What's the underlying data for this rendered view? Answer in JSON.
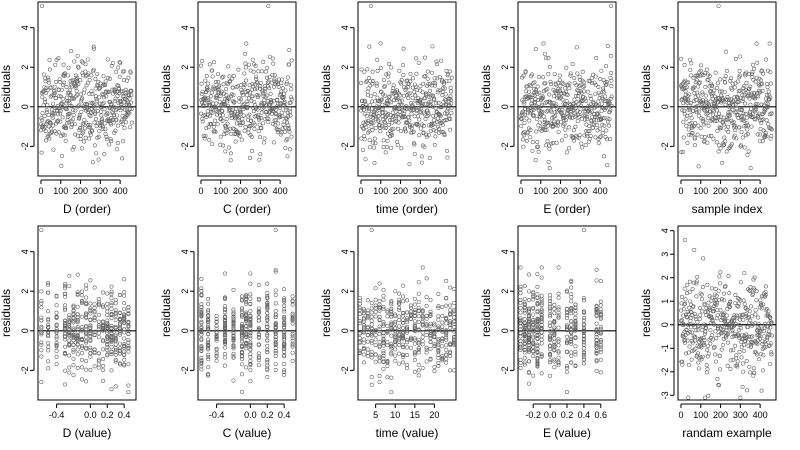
{
  "chart_data": [
    {
      "type": "scatter",
      "xlabel": "D (order)",
      "ylabel": "residuals",
      "xlim": [
        -15,
        480
      ],
      "ylim": [
        -3.5,
        5.3
      ],
      "xticks": [
        0,
        100,
        200,
        300,
        400
      ],
      "xtick_labels": [
        "0",
        "100",
        "200",
        "300",
        "400"
      ],
      "yticks": [
        -2,
        0,
        2,
        4
      ],
      "ytick_labels": [
        "-2",
        "0",
        "2",
        "4"
      ],
      "hline": 0,
      "n_points": 460,
      "x_kind": "index",
      "seed": 11,
      "outlier_x": 5,
      "outlier_y": 5.1
    },
    {
      "type": "scatter",
      "xlabel": "C (order)",
      "ylabel": "residuals",
      "xlim": [
        -15,
        480
      ],
      "ylim": [
        -3.5,
        5.3
      ],
      "xticks": [
        0,
        100,
        200,
        300,
        400
      ],
      "xtick_labels": [
        "0",
        "100",
        "200",
        "300",
        "400"
      ],
      "yticks": [
        -2,
        0,
        2,
        4
      ],
      "ytick_labels": [
        "-2",
        "0",
        "2",
        "4"
      ],
      "hline": 0,
      "n_points": 460,
      "x_kind": "index",
      "seed": 23,
      "outlier_x": 340,
      "outlier_y": 5.1
    },
    {
      "type": "scatter",
      "xlabel": "time (order)",
      "ylabel": "residuals",
      "xlim": [
        -15,
        480
      ],
      "ylim": [
        -3.5,
        5.3
      ],
      "xticks": [
        0,
        100,
        200,
        300,
        400
      ],
      "xtick_labels": [
        "0",
        "100",
        "200",
        "300",
        "400"
      ],
      "yticks": [
        -2,
        0,
        2,
        4
      ],
      "ytick_labels": [
        "-2",
        "0",
        "2",
        "4"
      ],
      "hline": 0,
      "n_points": 460,
      "x_kind": "index",
      "seed": 37,
      "outlier_x": 50,
      "outlier_y": 5.1
    },
    {
      "type": "scatter",
      "xlabel": "E (order)",
      "ylabel": "residuals",
      "xlim": [
        -15,
        480
      ],
      "ylim": [
        -3.5,
        5.3
      ],
      "xticks": [
        0,
        100,
        200,
        300,
        400
      ],
      "xtick_labels": [
        "0",
        "100",
        "200",
        "300",
        "400"
      ],
      "yticks": [
        -2,
        0,
        2,
        4
      ],
      "ytick_labels": [
        "-2",
        "0",
        "2",
        "4"
      ],
      "hline": 0,
      "n_points": 460,
      "x_kind": "index",
      "seed": 41,
      "outlier_x": 455,
      "outlier_y": 5.1
    },
    {
      "type": "scatter",
      "xlabel": "sample index",
      "ylabel": "residuals",
      "xlim": [
        -15,
        480
      ],
      "ylim": [
        -3.5,
        5.3
      ],
      "xticks": [
        0,
        100,
        200,
        300,
        400
      ],
      "xtick_labels": [
        "0",
        "100",
        "200",
        "300",
        "400"
      ],
      "yticks": [
        -2,
        0,
        2,
        4
      ],
      "ytick_labels": [
        "-2",
        "0",
        "2",
        "4"
      ],
      "hline": 0,
      "n_points": 460,
      "x_kind": "index",
      "seed": 53,
      "outlier_x": 190,
      "outlier_y": 5.1
    },
    {
      "type": "scatter",
      "xlabel": "D (value)",
      "ylabel": "residuals",
      "xlim": [
        -0.62,
        0.54
      ],
      "ylim": [
        -3.5,
        5.3
      ],
      "xticks": [
        -0.4,
        0,
        0.2,
        0.4
      ],
      "xtick_labels": [
        "-0.4",
        "0.0",
        "0.2",
        "0.4"
      ],
      "yticks": [
        -2,
        0,
        2,
        4
      ],
      "ytick_labels": [
        "-2",
        "0",
        "2",
        "4"
      ],
      "hline": 0,
      "n_points": 460,
      "x_kind": "discrete",
      "x_levels": [
        -0.58,
        -0.5,
        -0.4,
        -0.3,
        -0.25,
        -0.2,
        -0.15,
        -0.1,
        -0.05,
        0,
        0.05,
        0.1,
        0.15,
        0.2,
        0.25,
        0.3,
        0.35,
        0.4,
        0.45
      ],
      "seed": 61,
      "outlier_x": -0.58,
      "outlier_y": 5.1
    },
    {
      "type": "scatter",
      "xlabel": "C (value)",
      "ylabel": "residuals",
      "xlim": [
        -0.62,
        0.54
      ],
      "ylim": [
        -3.5,
        5.3
      ],
      "xticks": [
        -0.4,
        0,
        0.2,
        0.4
      ],
      "xtick_labels": [
        "-0.4",
        "0.0",
        "0.2",
        "0.4"
      ],
      "yticks": [
        -2,
        0,
        2,
        4
      ],
      "ytick_labels": [
        "-2",
        "0",
        "2",
        "4"
      ],
      "hline": 0,
      "n_points": 460,
      "x_kind": "discrete",
      "x_levels": [
        -0.58,
        -0.5,
        -0.4,
        -0.3,
        -0.2,
        -0.1,
        -0.05,
        0,
        0.1,
        0.2,
        0.3,
        0.4,
        0.5
      ],
      "seed": 71,
      "outlier_x": 0.3,
      "outlier_y": 5.1
    },
    {
      "type": "scatter",
      "xlabel": "time (value)",
      "ylabel": "residuals",
      "xlim": [
        0.5,
        25.5
      ],
      "ylim": [
        -3.5,
        5.3
      ],
      "xticks": [
        5,
        10,
        15,
        20
      ],
      "xtick_labels": [
        "5",
        "10",
        "15",
        "20"
      ],
      "yticks": [
        -2,
        0,
        2,
        4
      ],
      "ytick_labels": [
        "-2",
        "0",
        "2",
        "4"
      ],
      "hline": 0,
      "n_points": 460,
      "x_kind": "discrete",
      "x_levels": [
        1,
        2,
        3,
        4,
        5,
        6,
        7,
        8,
        9,
        10,
        11,
        12,
        13,
        14,
        15,
        16,
        17,
        18,
        19,
        20,
        21,
        22,
        23,
        24,
        25
      ],
      "seed": 83,
      "outlier_x": 4,
      "outlier_y": 5.1
    },
    {
      "type": "scatter",
      "xlabel": "E (value)",
      "ylabel": "residuals",
      "xlim": [
        -0.38,
        0.78
      ],
      "ylim": [
        -3.5,
        5.3
      ],
      "xticks": [
        -0.2,
        0,
        0.2,
        0.4,
        0.6
      ],
      "xtick_labels": [
        "-0.2",
        "0.0",
        "0.2",
        "0.4",
        "0.6"
      ],
      "yticks": [
        -2,
        0,
        2,
        4
      ],
      "ytick_labels": [
        "-2",
        "0",
        "2",
        "4"
      ],
      "hline": 0,
      "n_points": 460,
      "x_kind": "discrete",
      "x_levels": [
        -0.35,
        -0.3,
        -0.25,
        -0.2,
        -0.15,
        -0.1,
        0,
        0.05,
        0.1,
        0.2,
        0.25,
        0.3,
        0.4,
        0.55,
        0.6
      ],
      "seed": 97,
      "outlier_x": 0.4,
      "outlier_y": 5.1
    },
    {
      "type": "scatter",
      "xlabel": "randam example",
      "ylabel": "residuals",
      "xlim": [
        -15,
        480
      ],
      "ylim": [
        -3.2,
        4.2
      ],
      "xticks": [
        0,
        100,
        200,
        300,
        400
      ],
      "xtick_labels": [
        "0",
        "100",
        "200",
        "300",
        "400"
      ],
      "yticks": [
        -3,
        -2,
        -1,
        0,
        1,
        2,
        3,
        4
      ],
      "ytick_labels": [
        "-3",
        "-2",
        "-1",
        "0",
        "1",
        "2",
        "3",
        "4"
      ],
      "hline": 0,
      "n_points": 460,
      "x_kind": "index",
      "seed": 109,
      "outlier_x": 20,
      "outlier_y": 3.6
    }
  ]
}
